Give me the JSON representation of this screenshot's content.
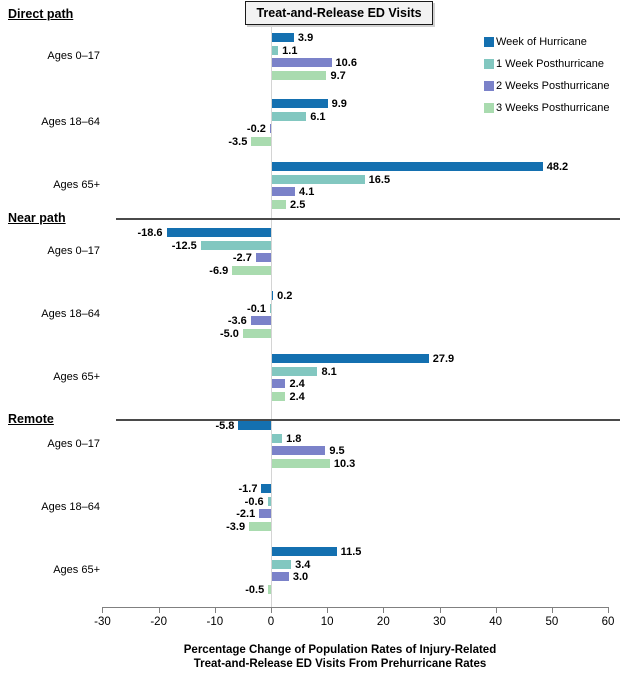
{
  "chart_data": {
    "type": "bar",
    "orientation": "horizontal",
    "title": "Treat-and-Release ED Visits",
    "xlabel_line1": "Percentage Change of Population Rates of Injury-Related",
    "xlabel_line2": "Treat-and-Release ED Visits From Prehurricane Rates",
    "xlim": [
      -30,
      60
    ],
    "xticks": [
      -30,
      -20,
      -10,
      0,
      10,
      20,
      30,
      40,
      50,
      60
    ],
    "grid": false,
    "legend_position": "top-right",
    "series": [
      {
        "name": "Week of Hurricane",
        "color": "#1470b0"
      },
      {
        "name": "1 Week Posthurricane",
        "color": "#82c7c0"
      },
      {
        "name": "2 Weeks Posthurricane",
        "color": "#7b82c9"
      },
      {
        "name": "3 Weeks Posthurricane",
        "color": "#a9dbaf"
      }
    ],
    "sections": [
      {
        "label": "Direct path",
        "groups": [
          {
            "label": "Ages 0–17",
            "values": [
              3.9,
              1.1,
              10.6,
              9.7
            ]
          },
          {
            "label": "Ages 18–64",
            "values": [
              9.9,
              6.1,
              -0.2,
              -3.5
            ]
          },
          {
            "label": "Ages 65+",
            "values": [
              48.2,
              16.5,
              4.1,
              2.5
            ]
          }
        ]
      },
      {
        "label": "Near path",
        "groups": [
          {
            "label": "Ages 0–17",
            "values": [
              -18.6,
              -12.5,
              -2.7,
              -6.9
            ]
          },
          {
            "label": "Ages 18–64",
            "values": [
              0.2,
              -0.1,
              -3.6,
              -5.0
            ]
          },
          {
            "label": "Ages 65+",
            "values": [
              27.9,
              8.1,
              2.4,
              2.4
            ]
          }
        ]
      },
      {
        "label": "Remote",
        "groups": [
          {
            "label": "Ages 0–17",
            "values": [
              -5.8,
              1.8,
              9.5,
              10.3
            ]
          },
          {
            "label": "Ages 18–64",
            "values": [
              -1.7,
              -0.6,
              -2.1,
              -3.9
            ]
          },
          {
            "label": "Ages 65+",
            "values": [
              11.5,
              3.4,
              3.0,
              -0.5
            ]
          }
        ]
      }
    ]
  }
}
